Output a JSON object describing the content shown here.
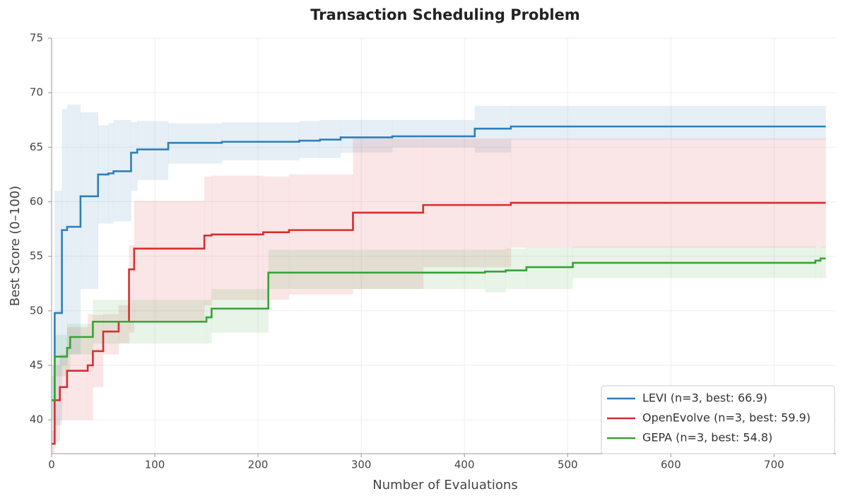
{
  "chart_data": {
    "type": "step-band",
    "title": "Transaction Scheduling Problem",
    "x_label": "Number of Evaluations",
    "y_label": "Best Score (0–100)",
    "xlim": [
      0,
      760
    ],
    "ylim": [
      36.9,
      75
    ],
    "xticks": [
      0,
      100,
      200,
      300,
      400,
      500,
      600,
      700
    ],
    "yticks": [
      40,
      45,
      50,
      55,
      60,
      65,
      70,
      75
    ],
    "grid": true,
    "legend": "lower right",
    "series": [
      {
        "name": "LEVI (n=3, best: 66.9)",
        "color": "#2e7fb8",
        "x": [
          0,
          3,
          10,
          15,
          28,
          45,
          55,
          60,
          77,
          83,
          113,
          165,
          240,
          260,
          280,
          330,
          410,
          445,
          750
        ],
        "values": [
          41.8,
          49.8,
          57.4,
          57.7,
          60.5,
          62.5,
          62.6,
          62.8,
          64.5,
          64.8,
          65.4,
          65.5,
          65.6,
          65.7,
          65.9,
          66.0,
          66.7,
          66.9,
          66.9
        ],
        "lower": [
          38,
          39.5,
          45,
          46,
          52,
          58,
          58,
          58.2,
          61,
          62,
          63.5,
          63.8,
          64,
          64,
          64.5,
          65,
          64.5,
          65.7,
          65.7
        ],
        "upper": [
          45,
          61,
          68.5,
          68.9,
          68.2,
          67,
          67.2,
          67.5,
          67.3,
          67.4,
          67.2,
          67.3,
          67.4,
          67.5,
          67.5,
          67.5,
          68.8,
          68.8,
          68.8
        ]
      },
      {
        "name": "OpenEvolve (n=3, best: 59.9)",
        "color": "#d62f2f",
        "x": [
          0,
          3,
          8,
          15,
          35,
          40,
          50,
          65,
          75,
          80,
          148,
          155,
          205,
          230,
          292,
          360,
          445,
          750
        ],
        "values": [
          37.8,
          41.8,
          43,
          44.5,
          45,
          46.3,
          48.1,
          49,
          53.8,
          55.7,
          56.9,
          57,
          57.2,
          57.4,
          59,
          59.7,
          59.9,
          59.9
        ],
        "lower": [
          37,
          38,
          40,
          40,
          40,
          43,
          46,
          47,
          48,
          49,
          50.5,
          51,
          51,
          51.5,
          52,
          54,
          55.8,
          55.8
        ],
        "upper": [
          39,
          45,
          46,
          48.5,
          49.7,
          49.6,
          49.7,
          50.5,
          56,
          60.1,
          62.3,
          62.4,
          62.3,
          62.5,
          65.8,
          65.8,
          65.8,
          65.8
        ]
      },
      {
        "name": "GEPA (n=3, best: 54.8)",
        "color": "#36a336",
        "x": [
          0,
          3,
          15,
          18,
          40,
          150,
          155,
          210,
          420,
          440,
          460,
          505,
          740,
          745,
          750
        ],
        "values": [
          41.8,
          45.8,
          46.6,
          47.6,
          49,
          49.4,
          50.2,
          53.5,
          53.6,
          53.7,
          54,
          54.4,
          54.6,
          54.8,
          54.8
        ],
        "lower": [
          40,
          44,
          44.5,
          46,
          47,
          47,
          48,
          52,
          51.7,
          52,
          52,
          53,
          53,
          53,
          53
        ],
        "upper": [
          44,
          47.8,
          48.8,
          48.8,
          51,
          51,
          52,
          55.6,
          55.6,
          55.7,
          55.8,
          55.9,
          55.8,
          55.9,
          55.9
        ]
      }
    ]
  }
}
